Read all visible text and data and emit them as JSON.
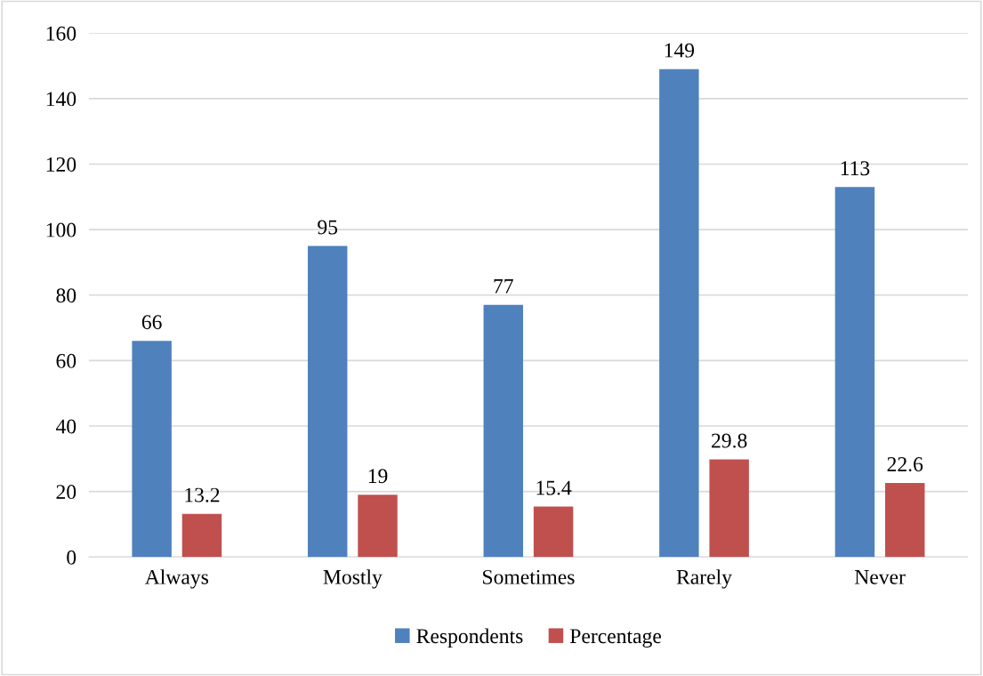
{
  "chart_data": {
    "type": "bar",
    "categories": [
      "Always",
      "Mostly",
      "Sometimes",
      "Rarely",
      "Never"
    ],
    "series": [
      {
        "name": "Respondents",
        "color": "#4f81bd",
        "values": [
          66,
          95,
          77,
          149,
          113
        ]
      },
      {
        "name": "Percentage",
        "color": "#c0504d",
        "values": [
          13.2,
          19,
          15.4,
          29.8,
          22.6
        ]
      }
    ],
    "ylim": [
      0,
      160
    ],
    "yticks": [
      0,
      20,
      40,
      60,
      80,
      100,
      120,
      140,
      160
    ],
    "grid": "y",
    "legend": "bottom",
    "data_labels": true
  }
}
